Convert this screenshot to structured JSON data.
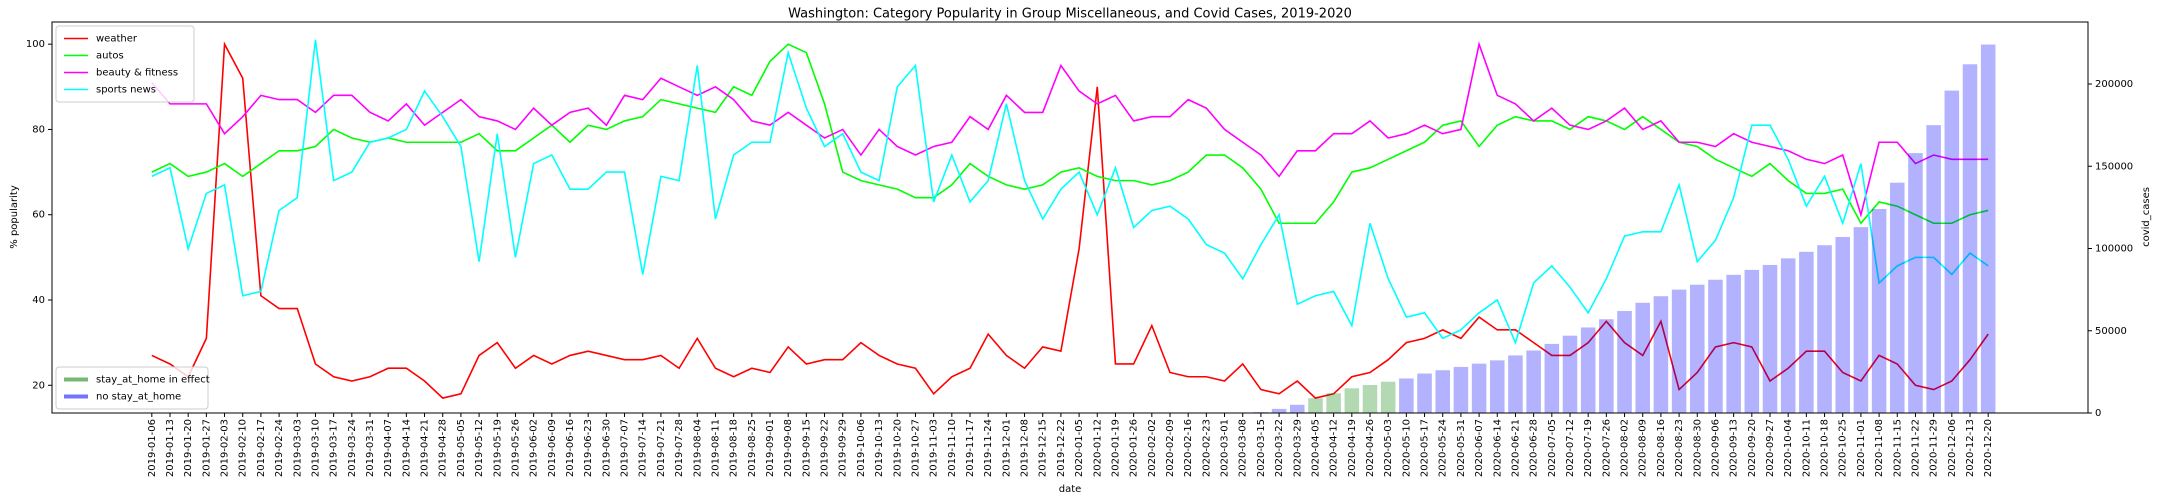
{
  "chart_data": {
    "type": "line",
    "title": "Washington: Category Popularity in Group Miscellaneous, and Covid Cases, 2019-2020",
    "x_label": "date",
    "y_label": "% popularity",
    "y2_label": "covid_cases",
    "x": [
      "2019-01-06",
      "2019-01-13",
      "2019-01-20",
      "2019-01-27",
      "2019-02-03",
      "2019-02-10",
      "2019-02-17",
      "2019-02-24",
      "2019-03-03",
      "2019-03-10",
      "2019-03-17",
      "2019-03-24",
      "2019-03-31",
      "2019-04-07",
      "2019-04-14",
      "2019-04-21",
      "2019-04-28",
      "2019-05-05",
      "2019-05-12",
      "2019-05-19",
      "2019-05-26",
      "2019-06-02",
      "2019-06-09",
      "2019-06-16",
      "2019-06-23",
      "2019-06-30",
      "2019-07-07",
      "2019-07-14",
      "2019-07-21",
      "2019-07-28",
      "2019-08-04",
      "2019-08-11",
      "2019-08-18",
      "2019-08-25",
      "2019-09-01",
      "2019-09-08",
      "2019-09-15",
      "2019-09-22",
      "2019-09-29",
      "2019-10-06",
      "2019-10-13",
      "2019-10-20",
      "2019-10-27",
      "2019-11-03",
      "2019-11-10",
      "2019-11-17",
      "2019-11-24",
      "2019-12-01",
      "2019-12-08",
      "2019-12-15",
      "2019-12-22",
      "2020-01-05",
      "2020-01-12",
      "2020-01-19",
      "2020-01-26",
      "2020-02-02",
      "2020-02-09",
      "2020-02-16",
      "2020-02-23",
      "2020-03-01",
      "2020-03-08",
      "2020-03-15",
      "2020-03-22",
      "2020-03-29",
      "2020-04-05",
      "2020-04-12",
      "2020-04-19",
      "2020-04-26",
      "2020-05-03",
      "2020-05-10",
      "2020-05-17",
      "2020-05-24",
      "2020-05-31",
      "2020-06-07",
      "2020-06-14",
      "2020-06-21",
      "2020-06-28",
      "2020-07-05",
      "2020-07-12",
      "2020-07-19",
      "2020-07-26",
      "2020-08-02",
      "2020-08-09",
      "2020-08-16",
      "2020-08-23",
      "2020-08-30",
      "2020-09-06",
      "2020-09-13",
      "2020-09-20",
      "2020-09-27",
      "2020-10-04",
      "2020-10-11",
      "2020-10-18",
      "2020-10-25",
      "2020-11-01",
      "2020-11-08",
      "2020-11-15",
      "2020-11-22",
      "2020-11-29",
      "2020-12-06",
      "2020-12-13",
      "2020-12-20"
    ],
    "series": [
      {
        "name": "weather",
        "color": "red",
        "values": [
          27,
          25,
          22,
          31,
          100,
          92,
          41,
          38,
          38,
          25,
          22,
          21,
          22,
          24,
          24,
          21,
          17,
          18,
          27,
          30,
          24,
          27,
          25,
          27,
          28,
          27,
          26,
          26,
          27,
          24,
          31,
          24,
          22,
          24,
          23,
          29,
          25,
          26,
          26,
          30,
          27,
          25,
          24,
          18,
          22,
          24,
          32,
          27,
          24,
          29,
          28,
          52,
          90,
          25,
          25,
          34,
          23,
          22,
          22,
          21,
          25,
          19,
          18,
          21,
          17,
          18,
          22,
          23,
          26,
          30,
          31,
          33,
          31,
          36,
          33,
          33,
          30,
          27,
          27,
          30,
          35,
          30,
          27,
          35,
          19,
          23,
          29,
          30,
          29,
          21,
          24,
          28,
          28,
          23,
          21,
          27,
          25,
          20,
          19,
          21,
          26,
          32
        ]
      },
      {
        "name": "autos",
        "color": "#00ff00",
        "values": [
          70,
          72,
          69,
          70,
          72,
          69,
          72,
          75,
          75,
          76,
          80,
          78,
          77,
          78,
          77,
          77,
          77,
          77,
          79,
          75,
          75,
          78,
          81,
          77,
          81,
          80,
          82,
          83,
          87,
          86,
          85,
          84,
          90,
          88,
          96,
          100,
          98,
          86,
          70,
          68,
          67,
          66,
          64,
          64,
          67,
          72,
          69,
          67,
          66,
          67,
          70,
          71,
          69,
          68,
          68,
          67,
          68,
          70,
          74,
          74,
          71,
          66,
          58,
          58,
          58,
          63,
          70,
          71,
          73,
          75,
          77,
          81,
          82,
          76,
          81,
          83,
          82,
          82,
          80,
          83,
          82,
          80,
          83,
          80,
          77,
          76,
          73,
          71,
          69,
          72,
          68,
          65,
          65,
          66,
          58,
          63,
          62,
          60,
          58,
          58,
          60,
          61
        ]
      },
      {
        "name": "beauty & fitness",
        "color": "magenta",
        "values": [
          91,
          86,
          86,
          86,
          79,
          83,
          88,
          87,
          87,
          84,
          88,
          88,
          84,
          82,
          86,
          81,
          84,
          87,
          83,
          82,
          80,
          85,
          81,
          84,
          85,
          81,
          88,
          87,
          92,
          90,
          88,
          90,
          87,
          82,
          81,
          84,
          81,
          78,
          80,
          74,
          80,
          76,
          74,
          76,
          77,
          83,
          80,
          88,
          84,
          84,
          95,
          89,
          86,
          88,
          82,
          83,
          83,
          87,
          85,
          80,
          77,
          74,
          69,
          75,
          75,
          79,
          79,
          82,
          78,
          79,
          81,
          79,
          80,
          100,
          88,
          86,
          82,
          85,
          81,
          80,
          82,
          85,
          80,
          82,
          77,
          77,
          76,
          79,
          77,
          76,
          75,
          73,
          72,
          74,
          60,
          77,
          77,
          72,
          74,
          73,
          73,
          73
        ]
      },
      {
        "name": "sports news",
        "color": "cyan",
        "values": [
          69,
          71,
          52,
          65,
          67,
          41,
          42,
          61,
          64,
          101,
          68,
          70,
          77,
          78,
          80,
          89,
          83,
          76,
          49,
          79,
          50,
          72,
          74,
          66,
          66,
          70,
          70,
          46,
          69,
          68,
          95,
          59,
          74,
          77,
          77,
          98,
          85,
          76,
          79,
          70,
          68,
          90,
          95,
          63,
          74,
          63,
          68,
          86,
          68,
          59,
          66,
          70,
          60,
          71,
          57,
          61,
          62,
          59,
          53,
          51,
          45,
          53,
          60,
          39,
          41,
          42,
          34,
          58,
          45,
          36,
          37,
          31,
          33,
          37,
          40,
          30,
          44,
          48,
          43,
          37,
          45,
          55,
          56,
          56,
          67,
          49,
          54,
          64,
          81,
          81,
          73,
          62,
          69,
          58,
          72,
          44,
          48,
          50,
          50,
          46,
          51,
          48
        ]
      },
      {
        "name": "stay_at_home in effect",
        "type": "bar",
        "axis": "y2",
        "color": "green",
        "values": [
          null,
          null,
          null,
          null,
          null,
          null,
          null,
          null,
          null,
          null,
          null,
          null,
          null,
          null,
          null,
          null,
          null,
          null,
          null,
          null,
          null,
          null,
          null,
          null,
          null,
          null,
          null,
          null,
          null,
          null,
          null,
          null,
          null,
          null,
          null,
          null,
          null,
          null,
          null,
          null,
          null,
          null,
          null,
          null,
          null,
          null,
          null,
          null,
          null,
          null,
          null,
          null,
          null,
          null,
          null,
          null,
          null,
          null,
          null,
          null,
          null,
          null,
          null,
          null,
          9000,
          12000,
          15000,
          17000,
          19000,
          null,
          null,
          null,
          null,
          null,
          null,
          null,
          null,
          null,
          null,
          null,
          null,
          null,
          null,
          null,
          null,
          null,
          null,
          null,
          null,
          null,
          null,
          null,
          null,
          null,
          null,
          null,
          null,
          null,
          null,
          null,
          null,
          null
        ]
      },
      {
        "name": "no stay_at_home",
        "type": "bar",
        "axis": "y2",
        "color": "blue",
        "values": [
          null,
          null,
          null,
          null,
          null,
          null,
          null,
          null,
          null,
          null,
          null,
          null,
          null,
          null,
          null,
          null,
          null,
          null,
          null,
          null,
          null,
          null,
          null,
          null,
          null,
          null,
          null,
          null,
          null,
          null,
          null,
          null,
          null,
          null,
          null,
          null,
          null,
          null,
          null,
          null,
          null,
          null,
          null,
          null,
          null,
          null,
          null,
          null,
          null,
          null,
          null,
          null,
          null,
          null,
          null,
          null,
          null,
          null,
          null,
          null,
          null,
          500,
          2500,
          5000,
          null,
          null,
          null,
          null,
          null,
          21000,
          24000,
          26000,
          28000,
          30000,
          32000,
          35000,
          38000,
          42000,
          47000,
          52000,
          57000,
          62000,
          67000,
          71000,
          75000,
          78000,
          81000,
          84000,
          87000,
          90000,
          94000,
          98000,
          102000,
          107000,
          113000,
          124000,
          140000,
          158000,
          175000,
          196000,
          212000,
          224000
        ]
      }
    ],
    "ylim": [
      13.5,
      105.2
    ],
    "yticks": [
      20,
      40,
      60,
      80,
      100
    ],
    "y2lim": [
      0,
      237700
    ],
    "y2ticks": [
      0,
      50000,
      100000,
      150000,
      200000
    ],
    "grid": false,
    "legend": "upper left",
    "bar_legend": "lower left"
  }
}
